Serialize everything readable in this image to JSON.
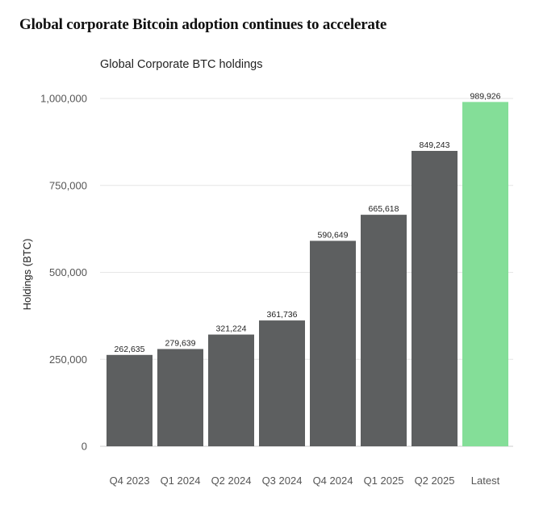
{
  "headline": "Global corporate Bitcoin adoption continues to accelerate",
  "chart_data": {
    "type": "bar",
    "title": "Global Corporate BTC holdings",
    "xlabel": "",
    "ylabel": "Holdings (BTC)",
    "ylim": [
      0,
      1000000
    ],
    "yticks": [
      0,
      250000,
      500000,
      750000,
      1000000
    ],
    "ytick_labels": [
      "0",
      "250,000",
      "500,000",
      "750,000",
      "1,000,000"
    ],
    "grid": true,
    "categories": [
      "Q4 2023",
      "Q1 2024",
      "Q2 2024",
      "Q3 2024",
      "Q4 2024",
      "Q1 2025",
      "Q2 2025",
      "Latest"
    ],
    "values": [
      262635,
      279639,
      321224,
      361736,
      590649,
      665618,
      849243,
      989926
    ],
    "value_labels": [
      "262,635",
      "279,639",
      "321,224",
      "361,736",
      "590,649",
      "665,618",
      "849,243",
      "989,926"
    ],
    "colors": [
      "#5d5f60",
      "#5d5f60",
      "#5d5f60",
      "#5d5f60",
      "#5d5f60",
      "#5d5f60",
      "#5d5f60",
      "#84de98"
    ]
  }
}
